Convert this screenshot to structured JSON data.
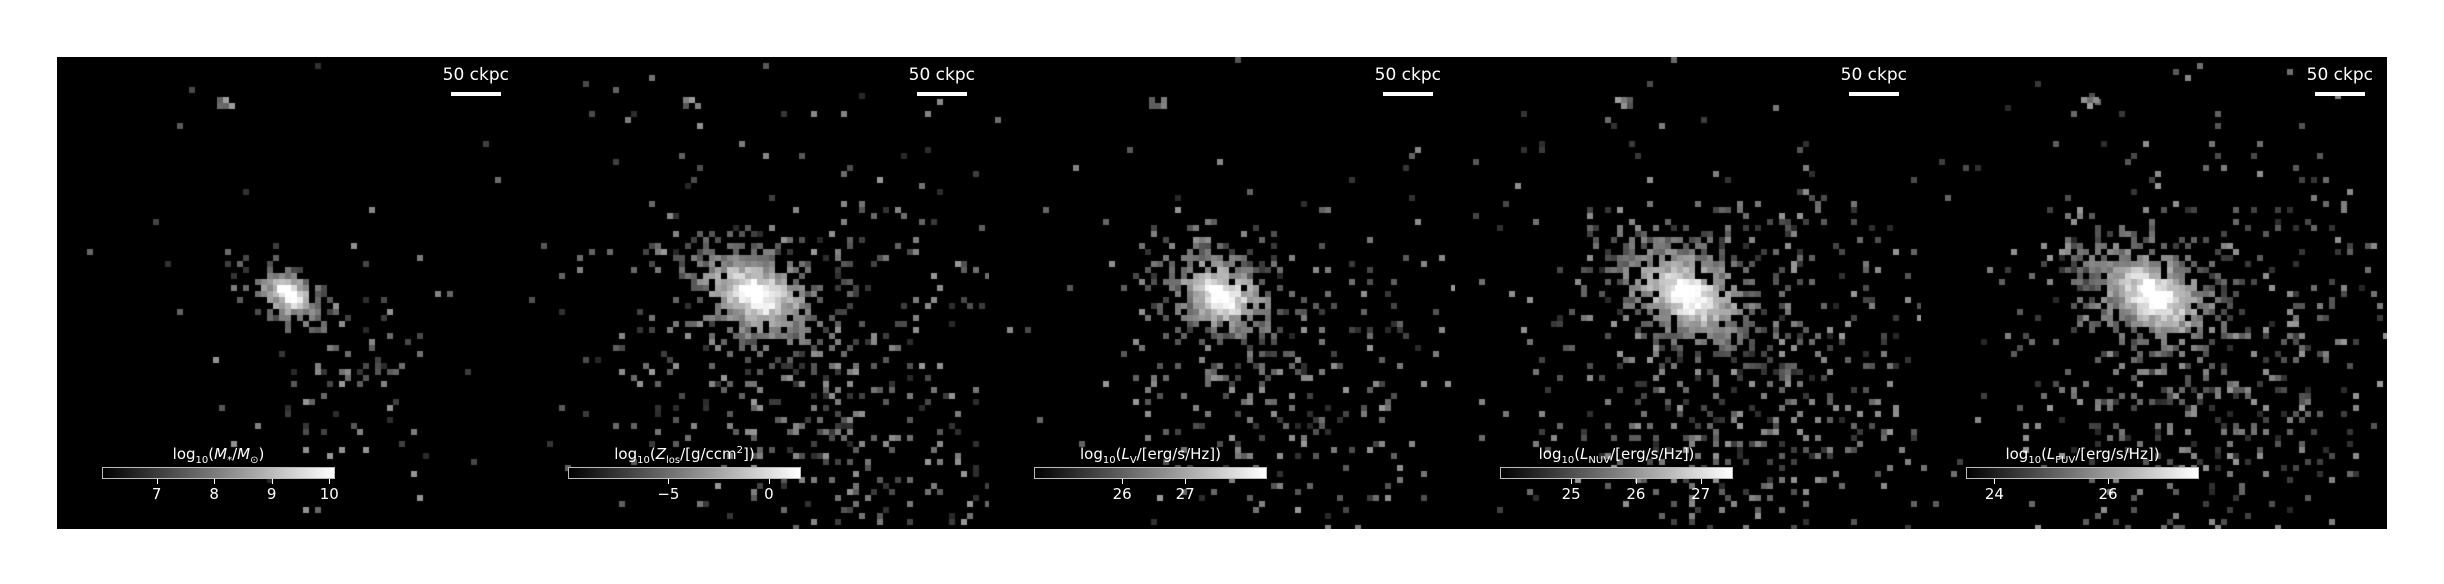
{
  "figure": {
    "scale_bar_label": "50 ckpc",
    "panels": [
      {
        "id": "stellar-mass",
        "colorbar_label": "log10(M*/M⊙)",
        "colorbar_ticks": [
          "7",
          "8",
          "9",
          "10"
        ],
        "colorbar_tick_values": [
          7,
          8,
          9,
          10
        ],
        "colorbar_range": [
          6.05,
          10.1
        ]
      },
      {
        "id": "metals",
        "colorbar_label": "log10(Zlos/[g/ccm2])",
        "colorbar_ticks": [
          "−5",
          "0"
        ],
        "colorbar_tick_values": [
          -5,
          0
        ],
        "colorbar_range": [
          -10.0,
          1.6
        ]
      },
      {
        "id": "v-band",
        "colorbar_label": "log10(LV/[erg/s/Hz])",
        "colorbar_ticks": [
          "26",
          "27"
        ],
        "colorbar_tick_values": [
          26,
          27
        ],
        "colorbar_range": [
          24.6,
          28.3
        ]
      },
      {
        "id": "nuv",
        "colorbar_label": "log10(LNUV/[erg/s/Hz])",
        "colorbar_ticks": [
          "25",
          "26",
          "27"
        ],
        "colorbar_tick_values": [
          25,
          26,
          27
        ],
        "colorbar_range": [
          23.9,
          27.5
        ]
      },
      {
        "id": "fuv",
        "colorbar_label": "log10(LFUV/[erg/s/Hz])",
        "colorbar_ticks": [
          "24",
          "26"
        ],
        "colorbar_tick_values": [
          24,
          26
        ],
        "colorbar_range": [
          23.5,
          27.6
        ]
      }
    ]
  }
}
